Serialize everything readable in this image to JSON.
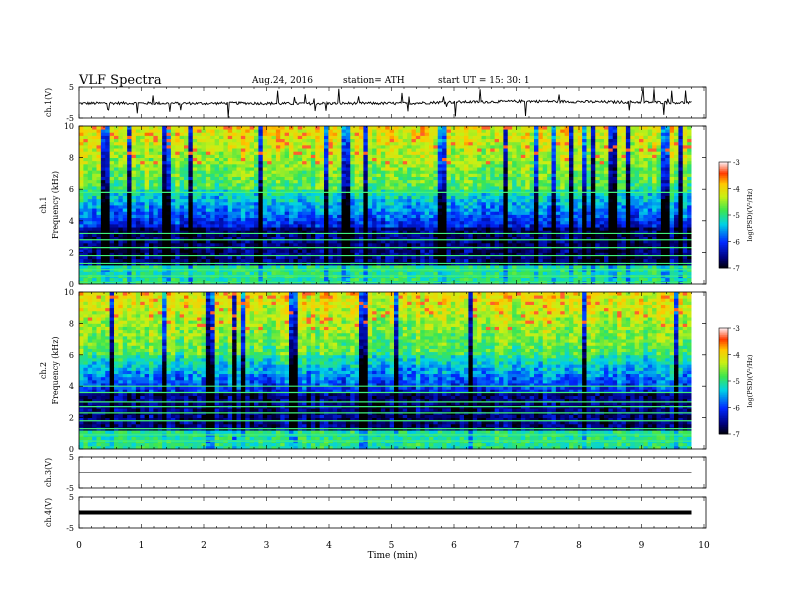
{
  "header": {
    "title": "VLF  Spectra",
    "date": "Aug.24, 2016",
    "station": "station= ATH",
    "start": "start  UT  =   15: 30: 1"
  },
  "chart_data": [
    {
      "type": "line",
      "panel": "ch1-waveform",
      "ylabel": "ch.1(V)",
      "xlim": [
        0,
        10
      ],
      "ylim": [
        -5,
        5
      ],
      "yticks": [
        "5",
        "-5"
      ],
      "series": [
        {
          "values": [
            -0.3,
            -0.2,
            -0.25,
            -0.3,
            -0.2,
            -0.35,
            -0.3,
            -0.25,
            -0.3,
            0.1,
            0.2,
            0.4,
            0.3,
            0.15,
            0.1,
            -0.1
          ]
        }
      ],
      "x": [
        0,
        0.65,
        1.3,
        1.95,
        2.6,
        3.25,
        3.9,
        4.55,
        5.2,
        5.85,
        6.5,
        7.15,
        7.8,
        8.45,
        9.1,
        9.8
      ]
    },
    {
      "type": "heatmap",
      "panel": "ch1-spectrogram",
      "ylabel_top": "ch.1",
      "ylabel": "Frequency  (kHz)",
      "xlim": [
        0,
        10
      ],
      "ylim": [
        0,
        10
      ],
      "yticks": [
        "0",
        "2",
        "4",
        "6",
        "8",
        "10"
      ],
      "colorbar": {
        "label": "log(PSD)(V²/Hz)",
        "range": [
          -7,
          -3
        ],
        "ticks": [
          "-3",
          "-4",
          "-5",
          "-6",
          "-7"
        ]
      },
      "horizontal_lines_khz": [
        0.1,
        0.5,
        0.9,
        1.3,
        1.8,
        2.3,
        2.8,
        3.2,
        5.8
      ]
    },
    {
      "type": "heatmap",
      "panel": "ch2-spectrogram",
      "ylabel_top": "ch.2",
      "ylabel": "Frequency  (kHz)",
      "xlim": [
        0,
        10
      ],
      "ylim": [
        0,
        10
      ],
      "yticks": [
        "0",
        "2",
        "4",
        "6",
        "8",
        "10"
      ],
      "colorbar": {
        "label": "log(PSD)(V²/Hz)",
        "range": [
          -7,
          -3
        ],
        "ticks": [
          "-3",
          "-4",
          "-5",
          "-6",
          "-7"
        ]
      },
      "horizontal_lines_khz": [
        0.5,
        0.9,
        1.3,
        1.8,
        2.3,
        2.7,
        3.0,
        3.6,
        4.0
      ]
    },
    {
      "type": "line",
      "panel": "ch3-waveform",
      "ylabel": "ch.3(V)",
      "xlim": [
        0,
        10
      ],
      "ylim": [
        -5,
        5
      ],
      "yticks": [
        "5",
        "-5"
      ],
      "series": [
        {
          "values": [
            0,
            0
          ]
        }
      ],
      "x": [
        0,
        9.8
      ]
    },
    {
      "type": "line",
      "panel": "ch4-waveform",
      "ylabel": "ch.4(V)",
      "xlim": [
        0,
        10
      ],
      "ylim": [
        -5,
        5
      ],
      "yticks": [
        "5",
        "-5"
      ],
      "series": [
        {
          "values": [
            0,
            0
          ]
        }
      ],
      "x": [
        0,
        9.8
      ]
    }
  ],
  "xaxis": {
    "label": "Time  (min)",
    "ticks": [
      "0",
      "1",
      "2",
      "3",
      "4",
      "5",
      "6",
      "7",
      "8",
      "9",
      "10"
    ]
  }
}
